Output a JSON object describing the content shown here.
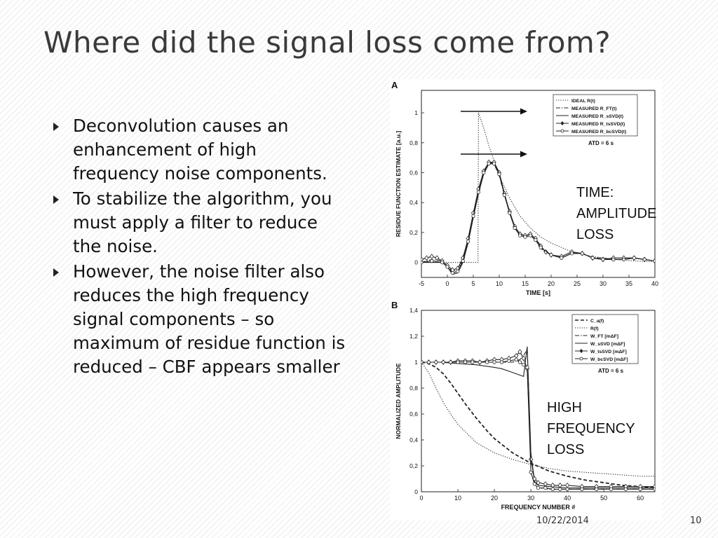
{
  "slide": {
    "title": "Where did the signal loss come from?",
    "bullets": [
      "Deconvolution causes an enhancement of high frequency noise components.",
      "To stabilize the algorithm, you must apply a filter to reduce the noise.",
      "However, the noise filter also reduces the high frequency signal components – so maximum of residue function is reduced – CBF appears smaller"
    ],
    "annotations": {
      "time_loss": "TIME:\nAMPLITUDE\nLOSS",
      "freq_loss": "HIGH\nFREQUENCY\nLOSS"
    },
    "footer": {
      "date": "10/22/2014",
      "page": "10"
    }
  },
  "chart_data": [
    {
      "type": "line",
      "panel_label": "A",
      "xlabel": "TIME  [s]",
      "ylabel": "RESIDUE FUNCTION ESTIMATE [a.u.]",
      "xlim": [
        -5,
        40
      ],
      "ylim": [
        -0.1,
        1.15
      ],
      "xticks": [
        -5,
        0,
        5,
        10,
        15,
        20,
        25,
        30,
        35,
        40
      ],
      "yticks": [
        "0",
        "0,2",
        "0,4",
        "0,6",
        "0,8",
        "1"
      ],
      "ytick_values": [
        0,
        0.2,
        0.4,
        0.6,
        0.8,
        1
      ],
      "legend_placement": "top-right",
      "legend_note": "ATD = 6 s",
      "series": [
        {
          "name": "IDEAL R(t)",
          "style": "dotted",
          "x": [
            -5,
            5.9,
            6,
            7,
            8,
            9,
            10,
            12,
            14,
            16,
            18,
            20,
            24,
            28,
            32,
            36,
            40
          ],
          "y": [
            0,
            0,
            1,
            0.9,
            0.78,
            0.68,
            0.58,
            0.43,
            0.31,
            0.23,
            0.17,
            0.13,
            0.07,
            0.04,
            0.02,
            0.01,
            0.005
          ]
        },
        {
          "name": "MEASURED R_FT(t)",
          "style": "dashdot",
          "x": [
            -5,
            -3,
            -1,
            0,
            1,
            2,
            3,
            4,
            5,
            6,
            7,
            8,
            9,
            10,
            11,
            12,
            13,
            14,
            15,
            16,
            17,
            18,
            20,
            22,
            24,
            26,
            28,
            30,
            32,
            34,
            36,
            38,
            40
          ],
          "y": [
            0,
            0.02,
            0.01,
            -0.02,
            -0.06,
            -0.05,
            0.02,
            0.15,
            0.32,
            0.48,
            0.6,
            0.66,
            0.66,
            0.58,
            0.45,
            0.33,
            0.24,
            0.19,
            0.18,
            0.19,
            0.15,
            0.09,
            0.05,
            0.04,
            0.07,
            0.06,
            0.03,
            0.03,
            0.02,
            0.02,
            0.03,
            0.02,
            0.01
          ]
        },
        {
          "name": "MEASURED R_sSVD(t)",
          "style": "solid",
          "x": [
            -5,
            -3,
            -1,
            0,
            1,
            2,
            3,
            4,
            5,
            6,
            7,
            8,
            9,
            10,
            11,
            12,
            13,
            14,
            15,
            16,
            17,
            18,
            20,
            22,
            24,
            26,
            28,
            30,
            32,
            34,
            36,
            38,
            40
          ],
          "y": [
            0,
            0,
            0,
            -0.03,
            -0.08,
            -0.07,
            0,
            0.13,
            0.3,
            0.46,
            0.59,
            0.66,
            0.67,
            0.6,
            0.46,
            0.33,
            0.23,
            0.18,
            0.17,
            0.18,
            0.15,
            0.1,
            0.05,
            0.03,
            0.06,
            0.06,
            0.03,
            0.02,
            0.02,
            0.02,
            0.03,
            0.02,
            0.01
          ]
        },
        {
          "name": "MEASURED R_tsSVD(t)",
          "style": "solid-diamond",
          "x": [
            -5,
            -4,
            -3,
            -2,
            -1,
            0,
            1,
            2,
            3,
            4,
            5,
            6,
            7,
            8,
            9,
            10,
            11,
            12,
            13,
            14,
            15,
            16,
            17,
            18,
            19,
            20,
            22,
            24,
            26,
            28,
            30,
            32,
            34,
            36,
            38,
            40
          ],
          "y": [
            0.02,
            0.03,
            0.04,
            0.03,
            0.01,
            -0.02,
            -0.05,
            -0.04,
            0.03,
            0.16,
            0.33,
            0.49,
            0.61,
            0.67,
            0.67,
            0.6,
            0.46,
            0.34,
            0.24,
            0.19,
            0.18,
            0.19,
            0.16,
            0.11,
            0.07,
            0.05,
            0.04,
            0.07,
            0.06,
            0.03,
            0.02,
            0.03,
            0.03,
            0.03,
            0.02,
            0.01
          ]
        },
        {
          "name": "MEASURED R_bcSVD(t)",
          "style": "solid-circle",
          "x": [
            -5,
            -3,
            -1,
            0,
            1,
            2,
            3,
            4,
            5,
            6,
            7,
            8,
            9,
            10,
            11,
            12,
            13,
            14,
            15,
            16,
            17,
            18,
            20,
            22,
            24,
            26,
            28,
            30,
            32,
            34,
            36,
            38,
            40
          ],
          "y": [
            0,
            0.01,
            0,
            -0.03,
            -0.07,
            -0.06,
            0.01,
            0.14,
            0.31,
            0.47,
            0.6,
            0.66,
            0.66,
            0.59,
            0.45,
            0.33,
            0.23,
            0.18,
            0.17,
            0.18,
            0.15,
            0.1,
            0.05,
            0.03,
            0.06,
            0.06,
            0.03,
            0.02,
            0.02,
            0.02,
            0.03,
            0.02,
            0.01
          ]
        }
      ]
    },
    {
      "type": "line",
      "panel_label": "B",
      "xlabel": "FREQUENCY NUMBER #",
      "ylabel": "NORMALIZED AMPLITUDE",
      "xlim": [
        0,
        64
      ],
      "ylim": [
        0,
        1.4
      ],
      "xticks": [
        0,
        10,
        20,
        30,
        40,
        50,
        60
      ],
      "yticks": [
        "0",
        "0,2",
        "0,4",
        "0,6",
        "0,8",
        "1",
        "1,2",
        "1,4"
      ],
      "ytick_values": [
        0,
        0.2,
        0.4,
        0.6,
        0.8,
        1,
        1.2,
        1.4
      ],
      "legend_placement": "top-right",
      "legend_note": "ATD = 6 s",
      "series": [
        {
          "name": "C_a(f)",
          "style": "dashed",
          "x": [
            0,
            2,
            4,
            6,
            8,
            10,
            12,
            15,
            18,
            20,
            25,
            30,
            35,
            40,
            45,
            50,
            55,
            60,
            64
          ],
          "y": [
            1,
            0.99,
            0.96,
            0.91,
            0.84,
            0.76,
            0.68,
            0.57,
            0.47,
            0.41,
            0.3,
            0.22,
            0.16,
            0.12,
            0.09,
            0.07,
            0.05,
            0.04,
            0.03
          ]
        },
        {
          "name": "R(f)",
          "style": "dotted",
          "x": [
            0,
            2,
            4,
            6,
            8,
            10,
            15,
            20,
            25,
            30,
            35,
            40,
            45,
            50,
            55,
            60,
            64
          ],
          "y": [
            1,
            0.92,
            0.8,
            0.69,
            0.6,
            0.52,
            0.38,
            0.3,
            0.25,
            0.21,
            0.18,
            0.16,
            0.15,
            0.14,
            0.13,
            0.12,
            0.12
          ]
        },
        {
          "name": "W_FT [mΔF]",
          "style": "dashdot",
          "x": [
            0,
            10,
            20,
            25,
            27,
            28,
            29,
            30,
            31,
            32,
            35,
            40,
            50,
            64
          ],
          "y": [
            1,
            1,
            1,
            1.0,
            1.02,
            1.05,
            1.1,
            0.3,
            0.06,
            0.03,
            0.02,
            0.02,
            0.02,
            0.02
          ]
        },
        {
          "name": "W_sSVD [mΔF]",
          "style": "solid",
          "x": [
            0,
            5,
            10,
            15,
            20,
            22,
            24,
            26,
            28,
            29,
            30,
            31,
            32,
            35,
            40,
            50,
            64
          ],
          "y": [
            1,
            1,
            0.99,
            0.98,
            0.96,
            0.95,
            0.93,
            0.91,
            0.89,
            1.12,
            0.3,
            0.08,
            0.05,
            0.04,
            0.03,
            0.03,
            0.03
          ]
        },
        {
          "name": "W_tsSVD [mΔF]",
          "style": "solid-diamond",
          "x": [
            0,
            2,
            4,
            6,
            8,
            10,
            12,
            14,
            16,
            18,
            20,
            22,
            24,
            26,
            27,
            28,
            29,
            30,
            31,
            32,
            34,
            36,
            38,
            40,
            44,
            48,
            52,
            56,
            60,
            64
          ],
          "y": [
            1,
            1,
            1,
            1,
            1,
            1.01,
            1.01,
            1.01,
            1.0,
            1.01,
            1.02,
            1.02,
            1.03,
            1.05,
            1.08,
            1.03,
            0.95,
            0.25,
            0.1,
            0.07,
            0.06,
            0.05,
            0.05,
            0.05,
            0.04,
            0.04,
            0.04,
            0.04,
            0.04,
            0.04
          ]
        },
        {
          "name": "W_bcSVD [mΔF]",
          "style": "solid-circle",
          "x": [
            0,
            2,
            4,
            6,
            8,
            10,
            12,
            14,
            16,
            18,
            20,
            22,
            24,
            26,
            27,
            28,
            29,
            30,
            31,
            32,
            34,
            36,
            38,
            40,
            44,
            48,
            52,
            56,
            60,
            64
          ],
          "y": [
            1,
            1,
            1,
            1,
            1,
            1.0,
            1.0,
            1.0,
            1.0,
            1.0,
            1.0,
            1.0,
            1.01,
            1.02,
            1.0,
            0.98,
            0.96,
            0.15,
            0.06,
            0.03,
            0.03,
            0.02,
            0.02,
            0.02,
            0.02,
            0.02,
            0.02,
            0.02,
            0.02,
            0.02
          ]
        }
      ]
    }
  ]
}
